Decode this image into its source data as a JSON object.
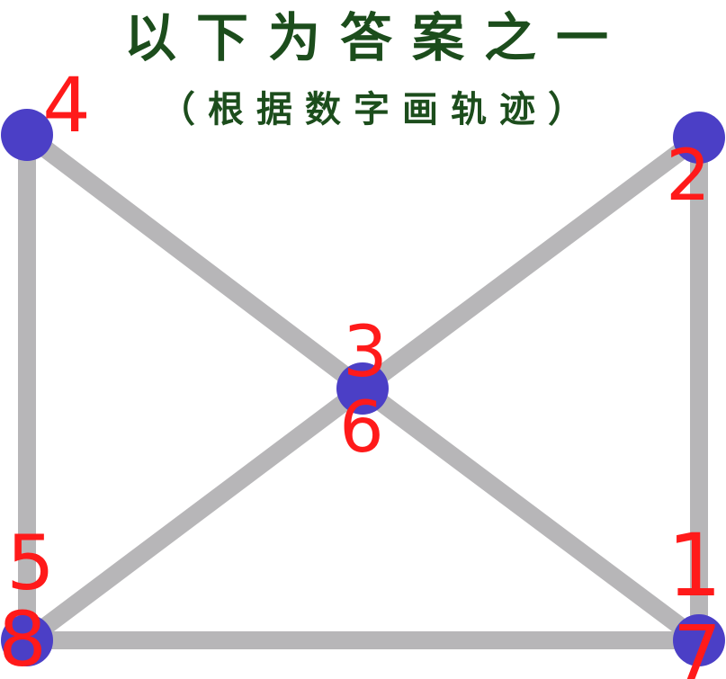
{
  "title": "以下为答案之一",
  "subtitle": "（根据数字画轨迹）",
  "colors": {
    "title": "#1c4d1c",
    "edge": "#b7b6b8",
    "node": "#4b3fc6",
    "number": "#ff1a1a"
  },
  "nodes": [
    {
      "id": "top-left"
    },
    {
      "id": "top-right"
    },
    {
      "id": "center"
    },
    {
      "id": "bottom-left"
    },
    {
      "id": "bottom-right"
    }
  ],
  "edges": [
    [
      "top-left",
      "bottom-left"
    ],
    [
      "top-left",
      "center"
    ],
    [
      "center",
      "bottom-right"
    ],
    [
      "top-right",
      "center"
    ],
    [
      "center",
      "bottom-left"
    ],
    [
      "top-right",
      "bottom-right"
    ],
    [
      "bottom-left",
      "bottom-right"
    ]
  ],
  "labels": [
    {
      "node": "bottom-right",
      "text": "1"
    },
    {
      "node": "top-right",
      "text": "2"
    },
    {
      "node": "center",
      "text": "3"
    },
    {
      "node": "top-left",
      "text": "4"
    },
    {
      "node": "bottom-left",
      "text": "5"
    },
    {
      "node": "center",
      "text": "6"
    },
    {
      "node": "bottom-right",
      "text": "7"
    },
    {
      "node": "bottom-left",
      "text": "8"
    }
  ]
}
